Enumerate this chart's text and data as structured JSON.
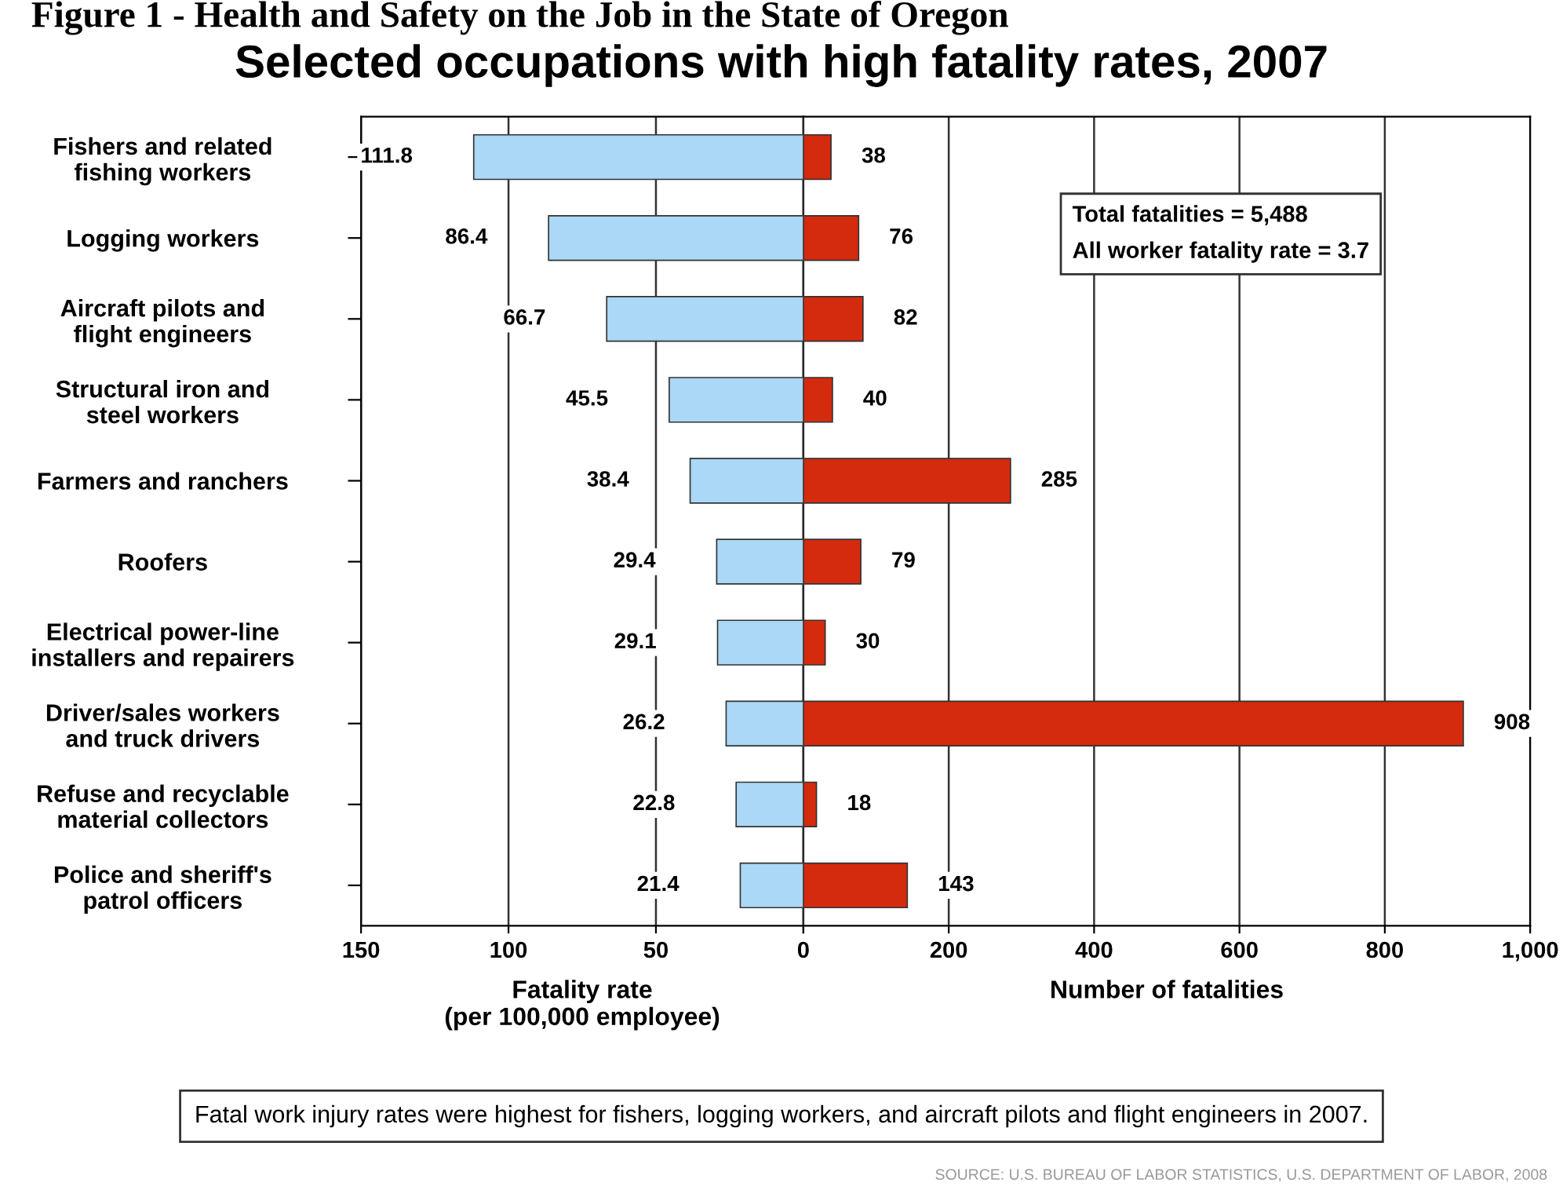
{
  "chart_data": [
    {
      "type": "bar",
      "orientation": "horizontal",
      "title": "Selected occupations with high fatality rates, 2007",
      "annotations": [
        "Figure 1 - Health and Safety on the Job in the State of Oregon"
      ],
      "categories": [
        "Fishers and related\nfishing workers",
        "Logging workers",
        "Aircraft pilots and\nflight engineers",
        "Structural iron and\nsteel workers",
        "Farmers and ranchers",
        "Roofers",
        "Electrical power-line\ninstallers and repairers",
        "Driver/sales workers\nand truck drivers",
        "Refuse and recyclable\nmaterial collectors",
        "Police and sheriff's\npatrol officers"
      ],
      "values": [
        111.8,
        86.4,
        66.7,
        45.5,
        38.4,
        29.4,
        29.1,
        26.2,
        22.8,
        21.4
      ],
      "color": "#aad8f6",
      "data_labels": true,
      "xlim": [
        150,
        0
      ],
      "xticks": [
        150,
        100,
        50,
        0
      ],
      "xlabel": "Fatality rate\n(per 100,000 employee)",
      "grid": "x"
    },
    {
      "type": "bar",
      "orientation": "horizontal",
      "values": [
        38,
        76,
        82,
        40,
        285,
        79,
        30,
        908,
        18,
        143
      ],
      "color": "#d42a0e",
      "data_labels": true,
      "xlim": [
        0,
        1000
      ],
      "xticks": [
        {
          "value": 0,
          "label": null
        },
        200,
        400,
        600,
        800,
        {
          "value": 1000,
          "label": "1,000"
        }
      ],
      "xlabel": "Number of fatalities",
      "grid": "x",
      "tick_labels": "x",
      "annotations": [
        "Total fatalities = 5,488",
        "All worker fatality rate = 3.7",
        "Fatal work injury rates were highest for fishers, logging workers, and aircraft pilots and flight engineers in 2007.",
        "SOURCE: U.S. BUREAU OF LABOR STATISTICS, U.S. DEPARTMENT OF LABOR, 2008"
      ]
    }
  ]
}
